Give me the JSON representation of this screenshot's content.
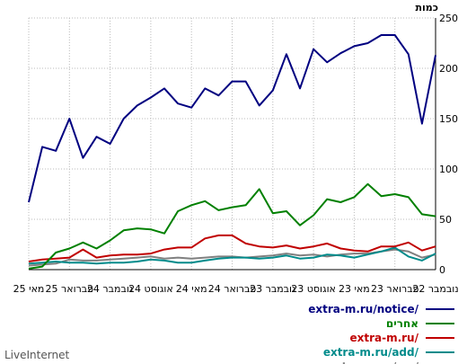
{
  "chart_data": {
    "type": "line",
    "title": "",
    "ylabel": "כמות",
    "xlabel": "",
    "ylim": [
      0,
      250
    ],
    "y_ticks": [
      0,
      50,
      100,
      150,
      200,
      250
    ],
    "x_tick_labels": [
      "מאי 25",
      "פברואר 25",
      "נובמבר 24",
      "אוגוסט 24",
      "מאי 24",
      "פברואר 24",
      "נובמבר 23",
      "אוגוסט 23",
      "מאי 23",
      "פברואר 23",
      "נובמבר 22"
    ],
    "grid": true,
    "legend_position": "bottom-right",
    "series": [
      {
        "name": "extra-m.ru/notice/",
        "color": "#000080",
        "values": [
          67,
          122,
          118,
          150,
          111,
          132,
          125,
          150,
          163,
          171,
          180,
          165,
          161,
          180,
          173,
          187,
          187,
          163,
          178,
          214,
          180,
          219,
          206,
          215,
          222,
          225,
          233,
          233,
          214,
          145,
          213
        ]
      },
      {
        "name": "אחרים",
        "color": "#008000",
        "values": [
          1,
          3,
          17,
          21,
          27,
          21,
          29,
          39,
          41,
          40,
          36,
          58,
          64,
          68,
          59,
          62,
          64,
          80,
          56,
          58,
          44,
          54,
          70,
          67,
          72,
          85,
          73,
          75,
          72,
          55,
          53
        ]
      },
      {
        "name": "extra-m.ru/",
        "color": "#c00000",
        "values": [
          8,
          10,
          11,
          12,
          20,
          12,
          14,
          15,
          15,
          16,
          20,
          22,
          22,
          31,
          34,
          34,
          26,
          23,
          22,
          24,
          21,
          23,
          26,
          21,
          19,
          18,
          23,
          23,
          27,
          19,
          23
        ]
      },
      {
        "name": "extra-m.ru/add/",
        "color": "#008b8b",
        "values": [
          6,
          7,
          8,
          7,
          7,
          6,
          7,
          7,
          8,
          10,
          9,
          7,
          7,
          9,
          11,
          12,
          12,
          11,
          12,
          14,
          11,
          12,
          15,
          14,
          12,
          15,
          18,
          22,
          13,
          9,
          16
        ]
      },
      {
        "name": "extra-m.ru/my/",
        "color": "#808080",
        "values": [
          4,
          5,
          6,
          10,
          9,
          9,
          10,
          11,
          12,
          13,
          11,
          12,
          11,
          12,
          13,
          13,
          12,
          13,
          14,
          16,
          14,
          15,
          13,
          15,
          16,
          16,
          18,
          20,
          18,
          12,
          15
        ]
      }
    ]
  },
  "branding": {
    "text": "LiveInternet"
  }
}
